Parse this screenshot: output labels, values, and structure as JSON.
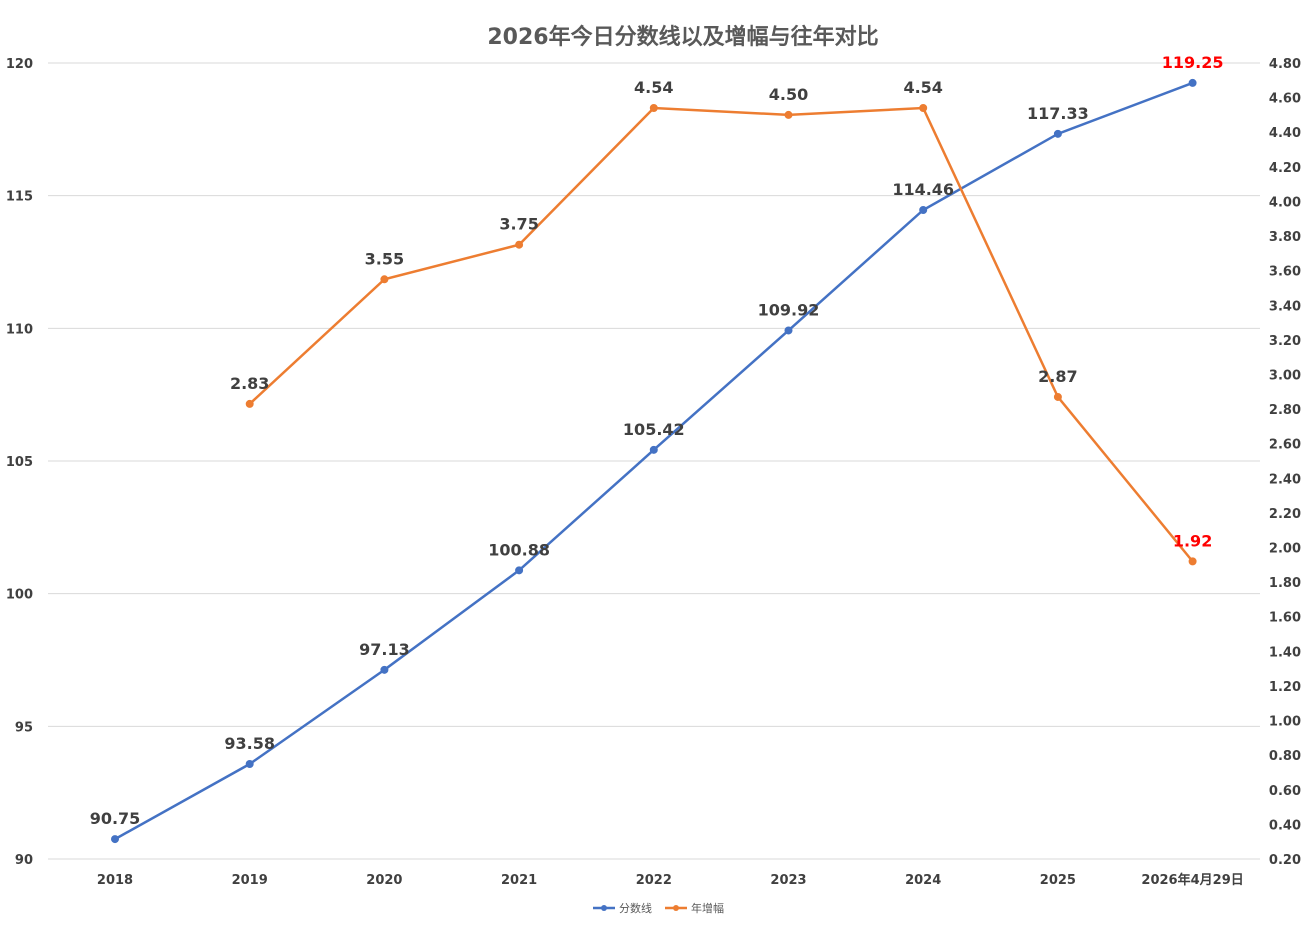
{
  "chart_data": {
    "type": "line",
    "title": "2026年今日分数线以及增幅与往年对比",
    "categories": [
      "2018",
      "2019",
      "2020",
      "2021",
      "2022",
      "2023",
      "2024",
      "2025",
      "2026年4月29日"
    ],
    "y_left": {
      "min": 90,
      "max": 120,
      "ticks": [
        "90",
        "95",
        "100",
        "105",
        "110",
        "115",
        "120"
      ]
    },
    "y_right": {
      "min": 0.2,
      "max": 4.8,
      "ticks": [
        "0.20",
        "0.40",
        "0.60",
        "0.80",
        "1.00",
        "1.20",
        "1.40",
        "1.60",
        "1.80",
        "2.00",
        "2.20",
        "2.40",
        "2.60",
        "2.80",
        "3.00",
        "3.20",
        "3.40",
        "3.60",
        "3.80",
        "4.00",
        "4.20",
        "4.40",
        "4.60",
        "4.80"
      ]
    },
    "grid": true,
    "legend_position": "bottom",
    "series": [
      {
        "name": "分数线",
        "axis": "left",
        "color": "#4472c4",
        "values": [
          90.75,
          93.58,
          97.13,
          100.88,
          105.42,
          109.92,
          114.46,
          117.33,
          119.25
        ],
        "labels": [
          "90.75",
          "93.58",
          "97.13",
          "100.88",
          "105.42",
          "109.92",
          "114.46",
          "117.33",
          "119.25"
        ]
      },
      {
        "name": "年增幅",
        "axis": "right",
        "color": "#ed7d31",
        "values": [
          null,
          2.83,
          3.55,
          3.75,
          4.54,
          4.5,
          4.54,
          2.87,
          1.92
        ],
        "labels": [
          "",
          "2.83",
          "3.55",
          "3.75",
          "4.54",
          "4.50",
          "4.54",
          "2.87",
          "1.92"
        ]
      }
    ],
    "highlight_color": "#ff0000",
    "label_color": "#404040"
  }
}
